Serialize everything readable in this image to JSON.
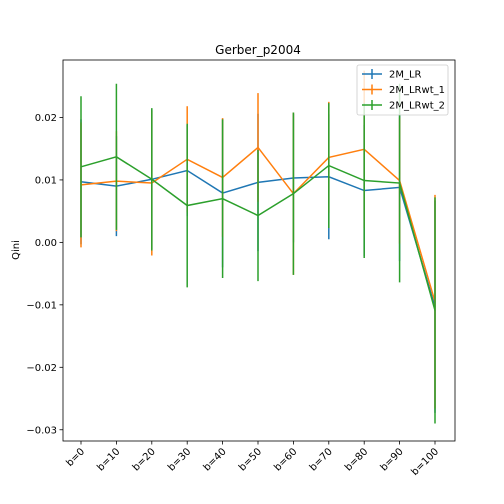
{
  "chart_data": {
    "type": "line",
    "title": "Gerber_p2004",
    "xlabel": "",
    "ylabel": "Qini",
    "categories": [
      "b=0",
      "b=10",
      "b=20",
      "b=30",
      "b=40",
      "b=50",
      "b=60",
      "b=70",
      "b=80",
      "b=90",
      "b=100"
    ],
    "ylim": [
      -0.0318,
      0.0292
    ],
    "yticks": [
      -0.03,
      -0.02,
      -0.01,
      0.0,
      0.01,
      0.02
    ],
    "ytick_labels": [
      "−0.03",
      "−0.02",
      "−0.01",
      "0.00",
      "0.01",
      "0.02"
    ],
    "grid": false,
    "legend_position": "top-right",
    "error_bars": true,
    "series": [
      {
        "name": "2M_LR",
        "color": "#1f77b4",
        "values": [
          0.0097,
          0.009,
          0.0101,
          0.0115,
          0.0079,
          0.0096,
          0.0103,
          0.0105,
          0.0083,
          0.0088,
          -0.0103
        ],
        "err": [
          0.01,
          0.008,
          0.0112,
          0.0073,
          0.0119,
          0.011,
          0.0103,
          0.01,
          0.0105,
          0.0118,
          0.017
        ]
      },
      {
        "name": "2M_LRwt_1",
        "color": "#ff7f0e",
        "values": [
          0.0092,
          0.0098,
          0.0095,
          0.0133,
          0.0104,
          0.0152,
          0.0078,
          0.0136,
          0.0149,
          0.0099,
          -0.0095
        ],
        "err": [
          0.01,
          0.008,
          0.0116,
          0.0085,
          0.0095,
          0.0087,
          0.013,
          0.0089,
          0.0126,
          0.0101,
          0.0171
        ]
      },
      {
        "name": "2M_LRwt_2",
        "color": "#2ca02c",
        "values": [
          0.0121,
          0.0137,
          0.0101,
          0.0059,
          0.007,
          0.0043,
          0.0078,
          0.0123,
          0.0099,
          0.0095,
          -0.0109
        ],
        "err": [
          0.0113,
          0.0117,
          0.0114,
          0.0131,
          0.0127,
          0.0105,
          0.013,
          0.01,
          0.0124,
          0.0159,
          0.0181
        ]
      }
    ]
  }
}
